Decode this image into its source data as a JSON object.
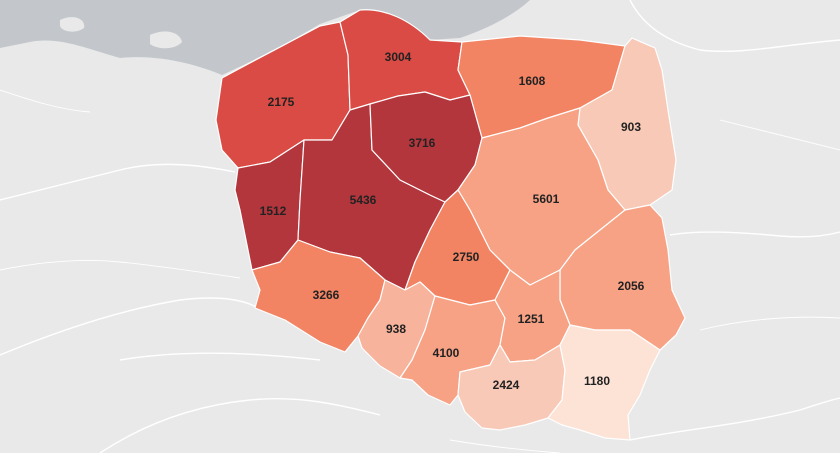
{
  "map": {
    "palette": {
      "land": "#e9e9e9",
      "sea": "#c3c7cc",
      "border": "#ffffff",
      "text": "#222222"
    },
    "regions": [
      {
        "id": "zachodniopomorskie",
        "value": "2175",
        "color": "#d94b44"
      },
      {
        "id": "pomorskie",
        "value": "3004",
        "color": "#d94b44"
      },
      {
        "id": "warminsko-mazurskie",
        "value": "1608",
        "color": "#f28464"
      },
      {
        "id": "podlaskie",
        "value": "903",
        "color": "#f8c9b6"
      },
      {
        "id": "lubuskie",
        "value": "1512",
        "color": "#b3363d"
      },
      {
        "id": "wielkopolskie",
        "value": "5436",
        "color": "#b3363d"
      },
      {
        "id": "kujawsko-pomorskie",
        "value": "3716",
        "color": "#b3363d"
      },
      {
        "id": "mazowieckie",
        "value": "5601",
        "color": "#f7a285"
      },
      {
        "id": "lodzkie",
        "value": "2750",
        "color": "#f28464"
      },
      {
        "id": "lubelskie",
        "value": "2056",
        "color": "#f7a285"
      },
      {
        "id": "dolnoslaskie",
        "value": "3266",
        "color": "#f28464"
      },
      {
        "id": "opolskie",
        "value": "938",
        "color": "#f7b39b"
      },
      {
        "id": "slaskie",
        "value": "4100",
        "color": "#f7a285"
      },
      {
        "id": "swietokrzyskie",
        "value": "1251",
        "color": "#f7a285"
      },
      {
        "id": "malopolskie",
        "value": "2424",
        "color": "#f8c9b6"
      },
      {
        "id": "podkarpackie",
        "value": "1180",
        "color": "#fde3d6"
      }
    ]
  }
}
